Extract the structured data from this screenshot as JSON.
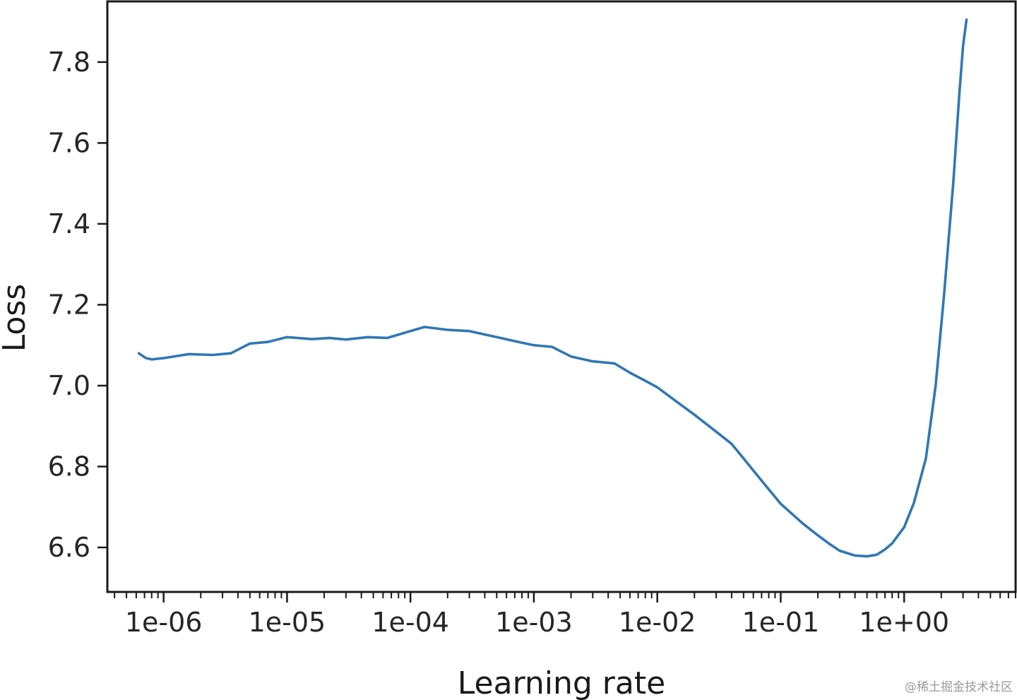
{
  "chart_data": {
    "type": "line",
    "title": "",
    "xlabel": "Learning rate",
    "ylabel": "Loss",
    "x_scale": "log",
    "xlim": [
      3.5e-07,
      8
    ],
    "ylim": [
      6.49,
      7.95
    ],
    "grid": false,
    "legend": "none",
    "line_color": "#2f78b4",
    "x_ticks": [
      {
        "value": 1e-06,
        "label": "1e-06"
      },
      {
        "value": 1e-05,
        "label": "1e-05"
      },
      {
        "value": 0.0001,
        "label": "1e-04"
      },
      {
        "value": 0.001,
        "label": "1e-03"
      },
      {
        "value": 0.01,
        "label": "1e-02"
      },
      {
        "value": 0.1,
        "label": "1e-01"
      },
      {
        "value": 1,
        "label": "1e+00"
      }
    ],
    "y_ticks": [
      {
        "value": 6.6,
        "label": "6.6"
      },
      {
        "value": 6.8,
        "label": "6.8"
      },
      {
        "value": 7.0,
        "label": "7.0"
      },
      {
        "value": 7.2,
        "label": "7.2"
      },
      {
        "value": 7.4,
        "label": "7.4"
      },
      {
        "value": 7.6,
        "label": "7.6"
      },
      {
        "value": 7.8,
        "label": "7.8"
      }
    ],
    "series": [
      {
        "x": [
          6.3e-07,
          7.2e-07,
          8e-07,
          1e-06,
          1.6e-06,
          2.5e-06,
          3.5e-06,
          5e-06,
          7e-06,
          1e-05,
          1.6e-05,
          2.2e-05,
          3e-05,
          4.5e-05,
          6.5e-05,
          0.0001,
          0.00013,
          0.0002,
          0.0003,
          0.0005,
          0.0007,
          0.001,
          0.0014,
          0.002,
          0.003,
          0.0045,
          0.006,
          0.008,
          0.01,
          0.015,
          0.02,
          0.03,
          0.04,
          0.05,
          0.07,
          0.1,
          0.15,
          0.2,
          0.25,
          0.3,
          0.4,
          0.5,
          0.6,
          0.7,
          0.8,
          1.0,
          1.2,
          1.5,
          1.8,
          2.1,
          2.5,
          2.8,
          3.0,
          3.2
        ],
        "y": [
          7.08,
          7.068,
          7.065,
          7.068,
          7.078,
          7.076,
          7.08,
          7.104,
          7.108,
          7.12,
          7.115,
          7.118,
          7.114,
          7.12,
          7.118,
          7.135,
          7.145,
          7.138,
          7.135,
          7.12,
          7.11,
          7.1,
          7.096,
          7.072,
          7.06,
          7.055,
          7.032,
          7.012,
          6.996,
          6.956,
          6.928,
          6.886,
          6.856,
          6.82,
          6.765,
          6.708,
          6.66,
          6.63,
          6.608,
          6.592,
          6.58,
          6.578,
          6.582,
          6.595,
          6.61,
          6.65,
          6.71,
          6.82,
          7.0,
          7.22,
          7.5,
          7.72,
          7.84,
          7.905
        ]
      }
    ]
  },
  "watermark": "@稀土掘金技术社区"
}
